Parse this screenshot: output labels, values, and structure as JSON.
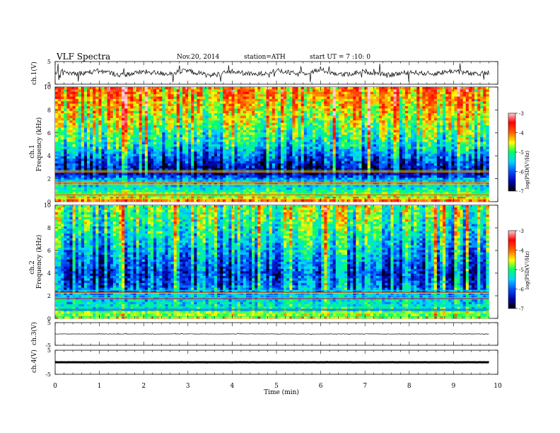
{
  "header": {
    "title": "VLF  Spectra",
    "date": "Nov.20, 2014",
    "station": "station=ATH",
    "start": "start  UT =   7 :10: 0"
  },
  "colorbar": {
    "label": "log(PSD(V²/Hz)",
    "ticks": [
      "-3",
      "-4",
      "-5",
      "-6",
      "-7"
    ],
    "range": [
      -7,
      -3
    ],
    "colors": [
      "#000000",
      "#0000aa",
      "#0050ff",
      "#00d8ff",
      "#00ff66",
      "#ffff00",
      "#ff6000",
      "#ff0000",
      "#ffd0d0"
    ]
  },
  "chart_data": [
    {
      "type": "line",
      "name": "ch1",
      "ylabel": "ch.1(V)",
      "ylim": [
        -5,
        5
      ],
      "yticks": [
        "5",
        "-5"
      ],
      "x_range_min": [
        0,
        9.8
      ],
      "x": [
        0,
        0.5,
        1,
        1.5,
        2,
        2.5,
        3,
        3.5,
        4,
        4.5,
        5,
        5.5,
        6,
        6.5,
        7,
        7.5,
        8,
        8.5,
        9,
        9.5,
        9.8
      ],
      "y": [
        0.2,
        -0.3,
        0.8,
        -1.0,
        0.5,
        -0.4,
        0.9,
        -1.2,
        0.6,
        -0.8,
        1.0,
        -0.6,
        1.3,
        -0.9,
        0.7,
        -1.1,
        0.4,
        -0.5,
        0.9,
        -0.7,
        0.1
      ]
    },
    {
      "type": "heatmap",
      "name": "ch1-spectrogram",
      "ylabel": "ch.1\nFrequency (kHz)",
      "ylim": [
        0,
        10
      ],
      "yticks": [
        "10",
        "8",
        "6",
        "4",
        "2",
        "0"
      ],
      "x_range_min": [
        0,
        9.8
      ],
      "level_profile_by_freq_khz": [
        [
          0,
          -4.0
        ],
        [
          1,
          -5.2
        ],
        [
          2,
          -5.8
        ],
        [
          2.5,
          -6.6
        ],
        [
          3.5,
          -6.2
        ],
        [
          5,
          -5.3
        ],
        [
          7,
          -4.7
        ],
        [
          9,
          -4.2
        ],
        [
          10,
          -4.0
        ]
      ]
    },
    {
      "type": "heatmap",
      "name": "ch2-spectrogram",
      "ylabel": "ch.2\nFrequency (kHz)",
      "ylim": [
        0,
        10
      ],
      "yticks": [
        "10",
        "8",
        "6",
        "4",
        "2",
        "0"
      ],
      "x_range_min": [
        0,
        9.8
      ],
      "level_profile_by_freq_khz": [
        [
          0,
          -4.5
        ],
        [
          1,
          -5.3
        ],
        [
          2,
          -5.6
        ],
        [
          3,
          -6.0
        ],
        [
          4,
          -6.2
        ],
        [
          5,
          -5.9
        ],
        [
          7,
          -5.4
        ],
        [
          9,
          -5.0
        ],
        [
          10,
          -4.9
        ]
      ]
    },
    {
      "type": "line",
      "name": "ch3",
      "ylabel": "ch.3(V)",
      "ylim": [
        -5,
        5
      ],
      "yticks": [
        "5",
        "-5"
      ],
      "x": [
        0,
        9.8
      ],
      "y": [
        0,
        0
      ]
    },
    {
      "type": "line",
      "name": "ch4",
      "ylabel": "ch.4(V)",
      "ylim": [
        -5,
        5
      ],
      "yticks": [
        "5",
        "-5"
      ],
      "x": [
        0,
        9.8
      ],
      "y": [
        0,
        0
      ]
    }
  ],
  "xaxis": {
    "label": "Time  (min)",
    "ticks": [
      "0",
      "1",
      "2",
      "3",
      "4",
      "5",
      "6",
      "7",
      "8",
      "9",
      "10"
    ],
    "range": [
      0,
      10
    ]
  }
}
